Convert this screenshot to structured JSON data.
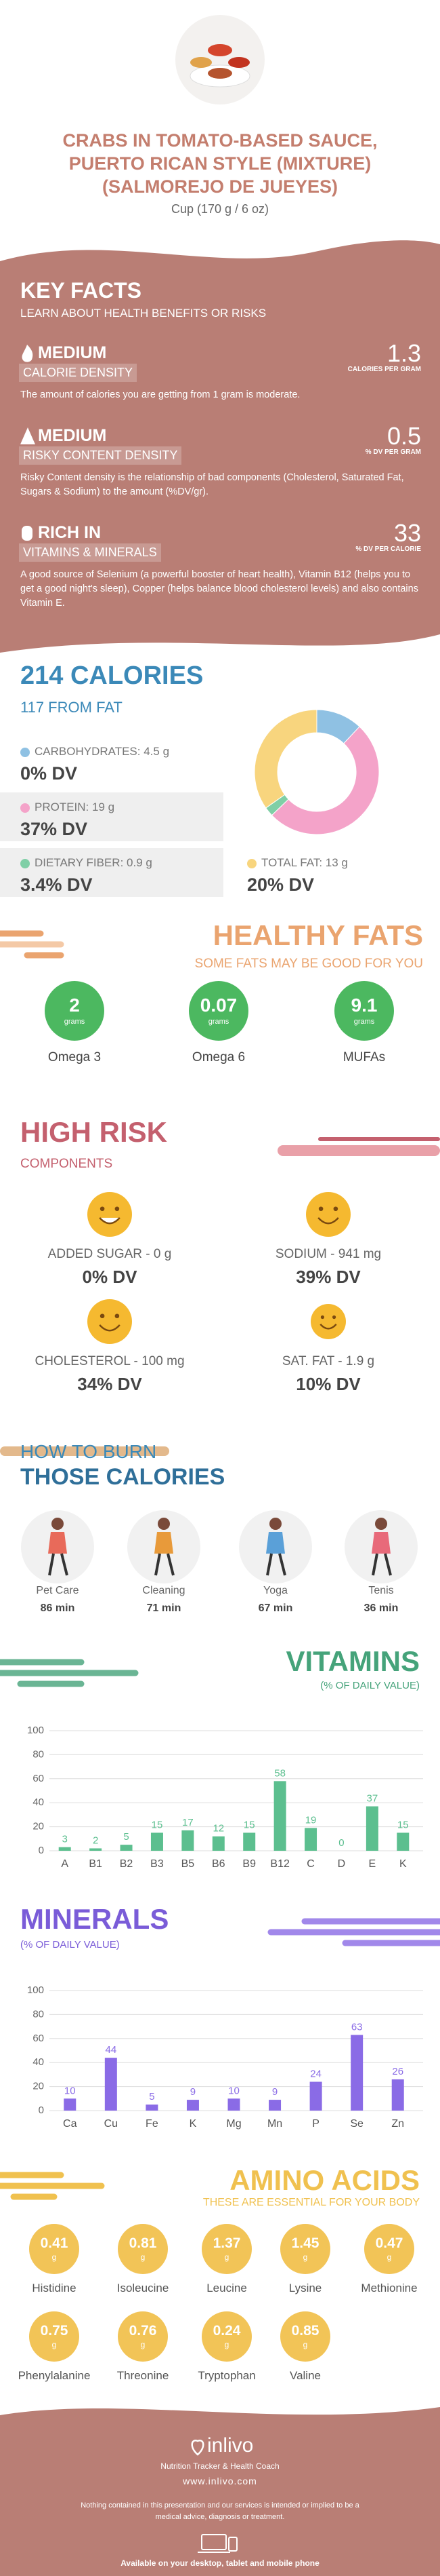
{
  "header": {
    "title": "CRABS IN TOMATO-BASED SAUCE, PUERTO RICAN STYLE (MIXTURE) (SALMOREJO DE JUEYES)",
    "serving": "Cup (170 g / 6 oz)"
  },
  "key_facts": {
    "title": "KEY FACTS",
    "subtitle": "LEARN ABOUT HEALTH BENEFITS OR RISKS",
    "facts": [
      {
        "level": "MEDIUM",
        "label": "CALORIE DENSITY",
        "value": 1.3,
        "unit": "CALORIES PER GRAM",
        "description": "The amount of calories you are getting from 1 gram is moderate."
      },
      {
        "level": "MEDIUM",
        "label": "RISKY CONTENT DENSITY",
        "value": 0.5,
        "unit": "% DV PER GRAM",
        "description": "Risky Content density is the relationship of bad components (Cholesterol, Saturated Fat, Sugars & Sodium) to the amount (%DV/gr)."
      },
      {
        "level": "RICH IN",
        "label": "VITAMINS & MINERALS",
        "value": 33,
        "unit": "% DV PER CALORIE",
        "description": "A good source of Selenium (a powerful booster of heart health), Vitamin B12 (helps you to get a good night's sleep), Copper (helps balance blood cholesterol levels) and also contains Vitamin E."
      }
    ]
  },
  "calories": {
    "title": "214 CALORIES",
    "from_fat": "117 FROM FAT",
    "macros": [
      {
        "label": "CARBOHYDRATES: 4.5 g",
        "grams": 4.5,
        "dv": "0% DV",
        "color": "#8fc1e3"
      },
      {
        "label": "PROTEIN: 19 g",
        "grams": 19,
        "dv": "37% DV",
        "color": "#f4a3c9"
      },
      {
        "label": "DIETARY FIBER: 0.9 g",
        "grams": 0.9,
        "dv": "3.4% DV",
        "color": "#7fcfa6"
      },
      {
        "label": "TOTAL FAT: 13 g",
        "grams": 13,
        "dv": "20% DV",
        "color": "#f8d57e"
      }
    ]
  },
  "healthy_fats": {
    "title": "HEALTHY FATS",
    "subtitle": "SOME FATS MAY BE GOOD FOR YOU",
    "items": [
      {
        "name": "Omega 3",
        "value": 2,
        "unit": "grams"
      },
      {
        "name": "Omega 6",
        "value": 0.07,
        "unit": "grams"
      },
      {
        "name": "MUFAs",
        "value": 9.1,
        "unit": "grams"
      }
    ]
  },
  "high_risk": {
    "title": "HIGH RISK",
    "subtitle": "COMPONENTS",
    "items": [
      {
        "label": "ADDED SUGAR - 0 g",
        "dv": "0% DV"
      },
      {
        "label": "SODIUM - 941 mg",
        "dv": "39% DV"
      },
      {
        "label": "CHOLESTEROL - 100 mg",
        "dv": "34% DV"
      },
      {
        "label": "SAT. FAT - 1.9 g",
        "dv": "10% DV"
      }
    ]
  },
  "burn": {
    "title": "HOW TO BURN",
    "subtitle": "THOSE CALORIES",
    "items": [
      {
        "name": "Pet Care",
        "time": "86 min"
      },
      {
        "name": "Cleaning",
        "time": "71 min"
      },
      {
        "name": "Yoga",
        "time": "67 min"
      },
      {
        "name": "Tenis",
        "time": "36 min"
      }
    ]
  },
  "chart_data": [
    {
      "type": "bar",
      "title": "VITAMINS",
      "subtitle": "(% OF DAILY VALUE)",
      "categories": [
        "A",
        "B1",
        "B2",
        "B3",
        "B5",
        "B6",
        "B9",
        "B12",
        "C",
        "D",
        "E",
        "K"
      ],
      "values": [
        3,
        2,
        5,
        15,
        17,
        12,
        15,
        58,
        19,
        0,
        37,
        15
      ],
      "color": "#5cbf8f",
      "ylim": [
        0,
        100
      ],
      "yticks": [
        0,
        20,
        40,
        60,
        80,
        100
      ],
      "grid": true
    },
    {
      "type": "bar",
      "title": "MINERALS",
      "subtitle": "(% OF DAILY VALUE)",
      "categories": [
        "Ca",
        "Cu",
        "Fe",
        "K",
        "Mg",
        "Mn",
        "P",
        "Se",
        "Zn"
      ],
      "values": [
        10,
        44,
        5,
        9,
        10,
        9,
        24,
        63,
        26
      ],
      "color": "#8a6be6",
      "ylim": [
        0,
        100
      ],
      "yticks": [
        0,
        20,
        40,
        60,
        80,
        100
      ],
      "grid": true
    }
  ],
  "amino_acids": {
    "title": "AMINO ACIDS",
    "subtitle": "THESE ARE ESSENTIAL FOR YOUR BODY",
    "items": [
      {
        "name": "Histidine",
        "value": 0.41,
        "unit": "g"
      },
      {
        "name": "Isoleucine",
        "value": 0.81,
        "unit": "g"
      },
      {
        "name": "Leucine",
        "value": 1.37,
        "unit": "g"
      },
      {
        "name": "Lysine",
        "value": 1.45,
        "unit": "g"
      },
      {
        "name": "Methionine",
        "value": 0.47,
        "unit": "g"
      },
      {
        "name": "Phenylalanine",
        "value": 0.75,
        "unit": "g"
      },
      {
        "name": "Threonine",
        "value": 0.76,
        "unit": "g"
      },
      {
        "name": "Tryptophan",
        "value": 0.24,
        "unit": "g"
      },
      {
        "name": "Valine",
        "value": 0.85,
        "unit": "g"
      }
    ]
  },
  "footer": {
    "brand": "inlivo",
    "tagline": "Nutrition Tracker & Health Coach",
    "url": "www.inlivo.com",
    "disclaimer": "Nothing contained in this presentation and our services is intended or implied to be a medical advice, diagnosis or treatment.",
    "availability": "Available on your desktop, tablet and mobile phone"
  }
}
